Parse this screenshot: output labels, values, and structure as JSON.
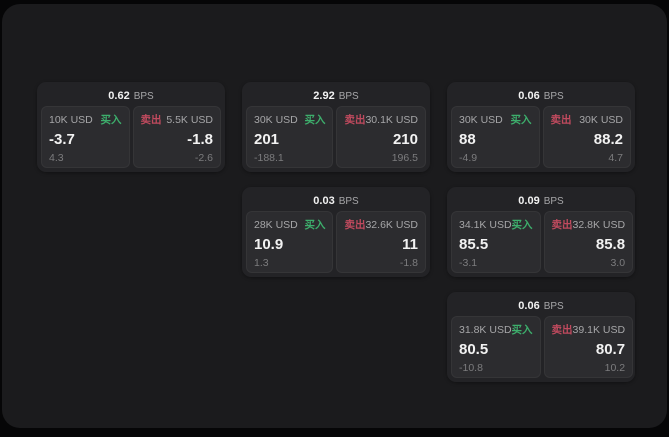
{
  "theme": {
    "page_bg": "#060607",
    "panel_bg": "#1b1b1d",
    "card_bg": "#232326",
    "tile_bg": "#2c2c2f",
    "text_bright": "#f2f2f2",
    "text_label": "#a6a6a8",
    "text_dim": "#7c7c7e",
    "buy_green": "#3dae6c",
    "sell_red": "#c04a5e"
  },
  "labels": {
    "bps_unit": "BPS",
    "buy": "买入",
    "sell": "卖出"
  },
  "cards": [
    {
      "col": 0,
      "row": 0,
      "bps": "0.62",
      "buy": {
        "amount": "10K USD",
        "value": "-3.7",
        "delta": "4.3"
      },
      "sell": {
        "amount": "5.5K USD",
        "value": "-1.8",
        "delta": "-2.6"
      }
    },
    {
      "col": 1,
      "row": 0,
      "bps": "2.92",
      "buy": {
        "amount": "30K USD",
        "value": "201",
        "delta": "-188.1"
      },
      "sell": {
        "amount": "30.1K USD",
        "value": "210",
        "delta": "196.5"
      }
    },
    {
      "col": 2,
      "row": 0,
      "bps": "0.06",
      "buy": {
        "amount": "30K USD",
        "value": "88",
        "delta": "-4.9"
      },
      "sell": {
        "amount": "30K USD",
        "value": "88.2",
        "delta": "4.7"
      }
    },
    {
      "col": 1,
      "row": 1,
      "bps": "0.03",
      "buy": {
        "amount": "28K USD",
        "value": "10.9",
        "delta": "1.3"
      },
      "sell": {
        "amount": "32.6K USD",
        "value": "11",
        "delta": "-1.8"
      }
    },
    {
      "col": 2,
      "row": 1,
      "bps": "0.09",
      "buy": {
        "amount": "34.1K USD",
        "value": "85.5",
        "delta": "-3.1"
      },
      "sell": {
        "amount": "32.8K USD",
        "value": "85.8",
        "delta": "3.0"
      }
    },
    {
      "col": 2,
      "row": 2,
      "bps": "0.06",
      "buy": {
        "amount": "31.8K USD",
        "value": "80.5",
        "delta": "-10.8"
      },
      "sell": {
        "amount": "39.1K USD",
        "value": "80.7",
        "delta": "10.2"
      }
    }
  ]
}
